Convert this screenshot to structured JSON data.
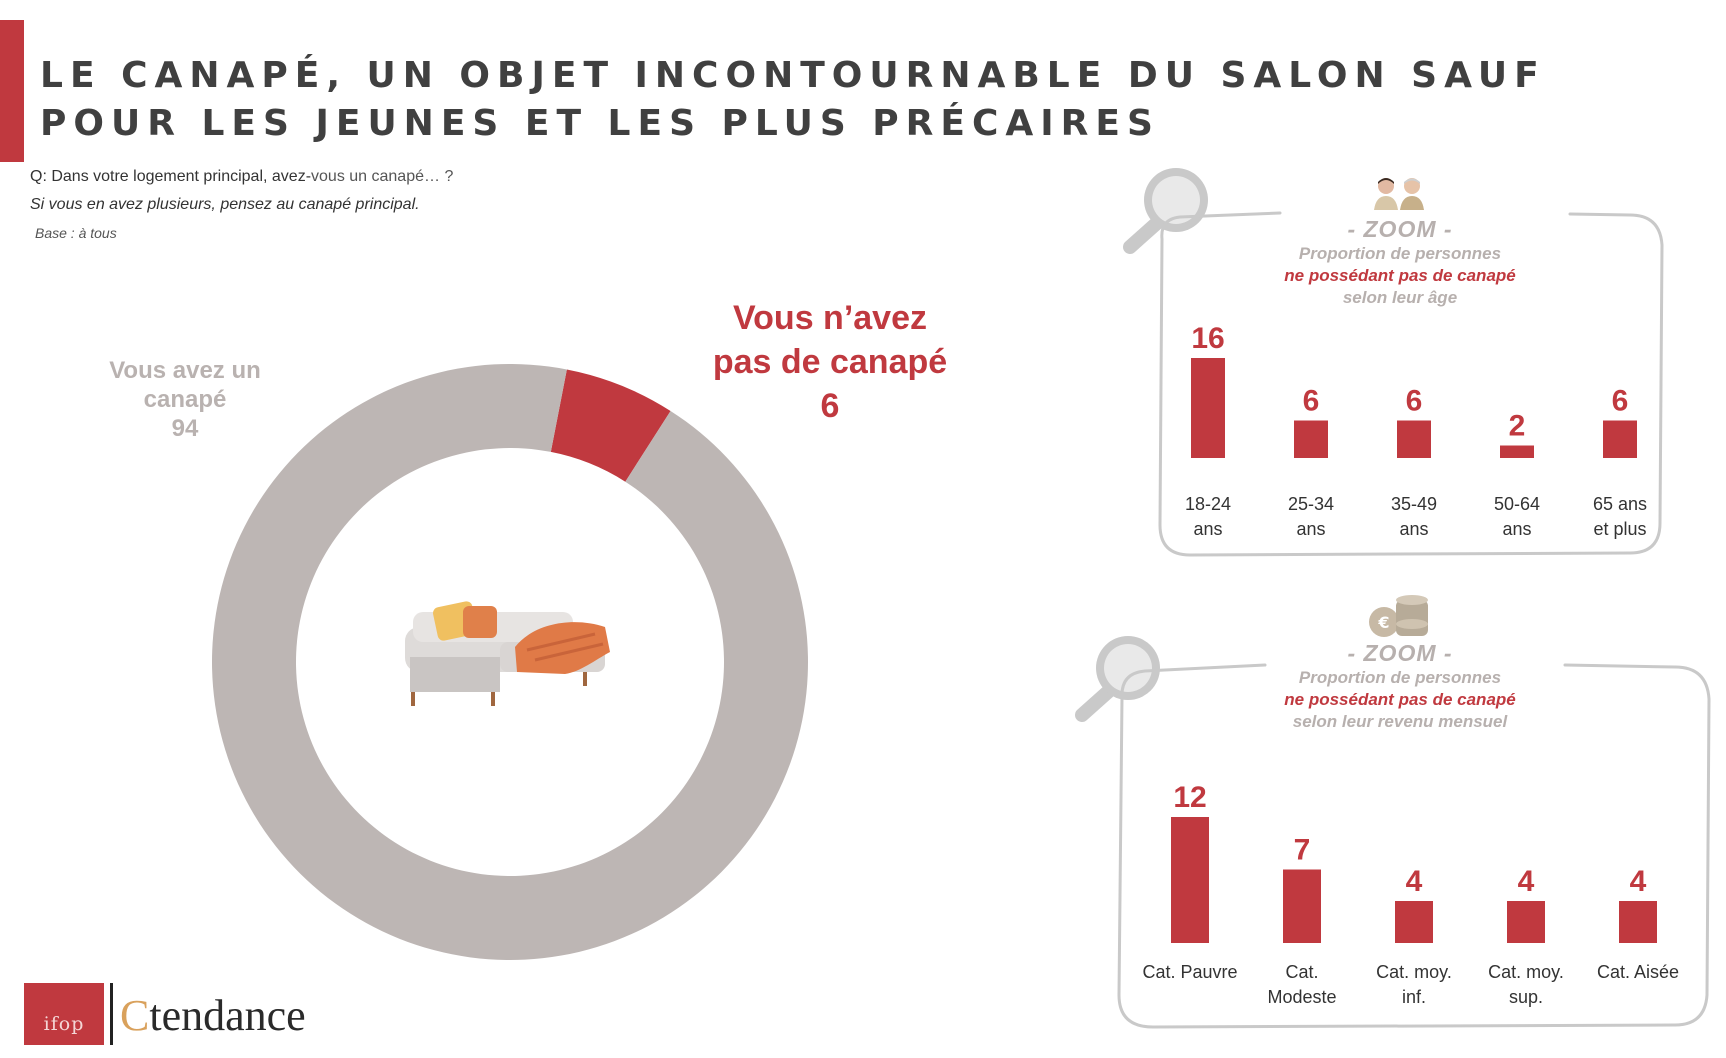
{
  "header": {
    "title": "LE CANAPÉ, UN OBJET INCONTOURNABLE DU SALON SAUF POUR LES JEUNES ET LES PLUS PRÉCAIRES",
    "question_prefix": "Q: Dans votre logement principal, avez-",
    "question_suffix": "vous un canapé… ?",
    "instruction": "Si vous en avez plusieurs, pensez au canapé principal.",
    "base": "Base : à tous"
  },
  "colors": {
    "accent": "#c0393f",
    "grey_segment": "#bdb6b4",
    "grey_text": "#b7b0ae",
    "frame": "#c9c9c9"
  },
  "icons": {
    "magnifier": "magnifier-icon",
    "people": "people-icon",
    "coins": "coins-icon",
    "sofa": "sofa-icon"
  },
  "donut": {
    "have_label": "Vous avez un canapé",
    "have_value": "94",
    "not_label": "Vous n’avez pas de canapé",
    "not_value": "6"
  },
  "zoom_age": {
    "zoom_title": "- ZOOM -",
    "line1": "Proportion de personnes",
    "line2": "ne possédant pas de canapé",
    "line3": "selon leur âge"
  },
  "zoom_income": {
    "zoom_title": "- ZOOM -",
    "line1": "Proportion de personnes",
    "line2": "ne possédant pas de canapé",
    "line3": "selon leur revenu mensuel"
  },
  "footer": {
    "ifop_logo": "ifop",
    "brand_c": "C",
    "brand_rest": "tendance"
  },
  "chart_data": [
    {
      "type": "pie",
      "title": "",
      "categories": [
        "Vous avez un canapé",
        "Vous n’avez pas de canapé"
      ],
      "values": [
        94,
        6
      ],
      "colors": [
        "#bdb6b4",
        "#c0393f"
      ]
    },
    {
      "type": "bar",
      "title": "",
      "categories": [
        [
          "18-24",
          "ans"
        ],
        [
          "25-34",
          "ans"
        ],
        [
          "35-49",
          "ans"
        ],
        [
          "50-64",
          "ans"
        ],
        [
          "65 ans",
          "et plus"
        ]
      ],
      "values": [
        16,
        6,
        6,
        2,
        6
      ],
      "color": "#c0393f",
      "ylim": [
        0,
        16
      ],
      "grid": false
    },
    {
      "type": "bar",
      "title": "",
      "categories": [
        [
          "Cat. Pauvre"
        ],
        [
          "Cat.",
          "Modeste"
        ],
        [
          "Cat. moy.",
          "inf."
        ],
        [
          "Cat. moy.",
          "sup."
        ],
        [
          "Cat. Aisée"
        ]
      ],
      "values": [
        12,
        7,
        4,
        4,
        4
      ],
      "color": "#c0393f",
      "ylim": [
        0,
        12
      ],
      "grid": false
    }
  ]
}
